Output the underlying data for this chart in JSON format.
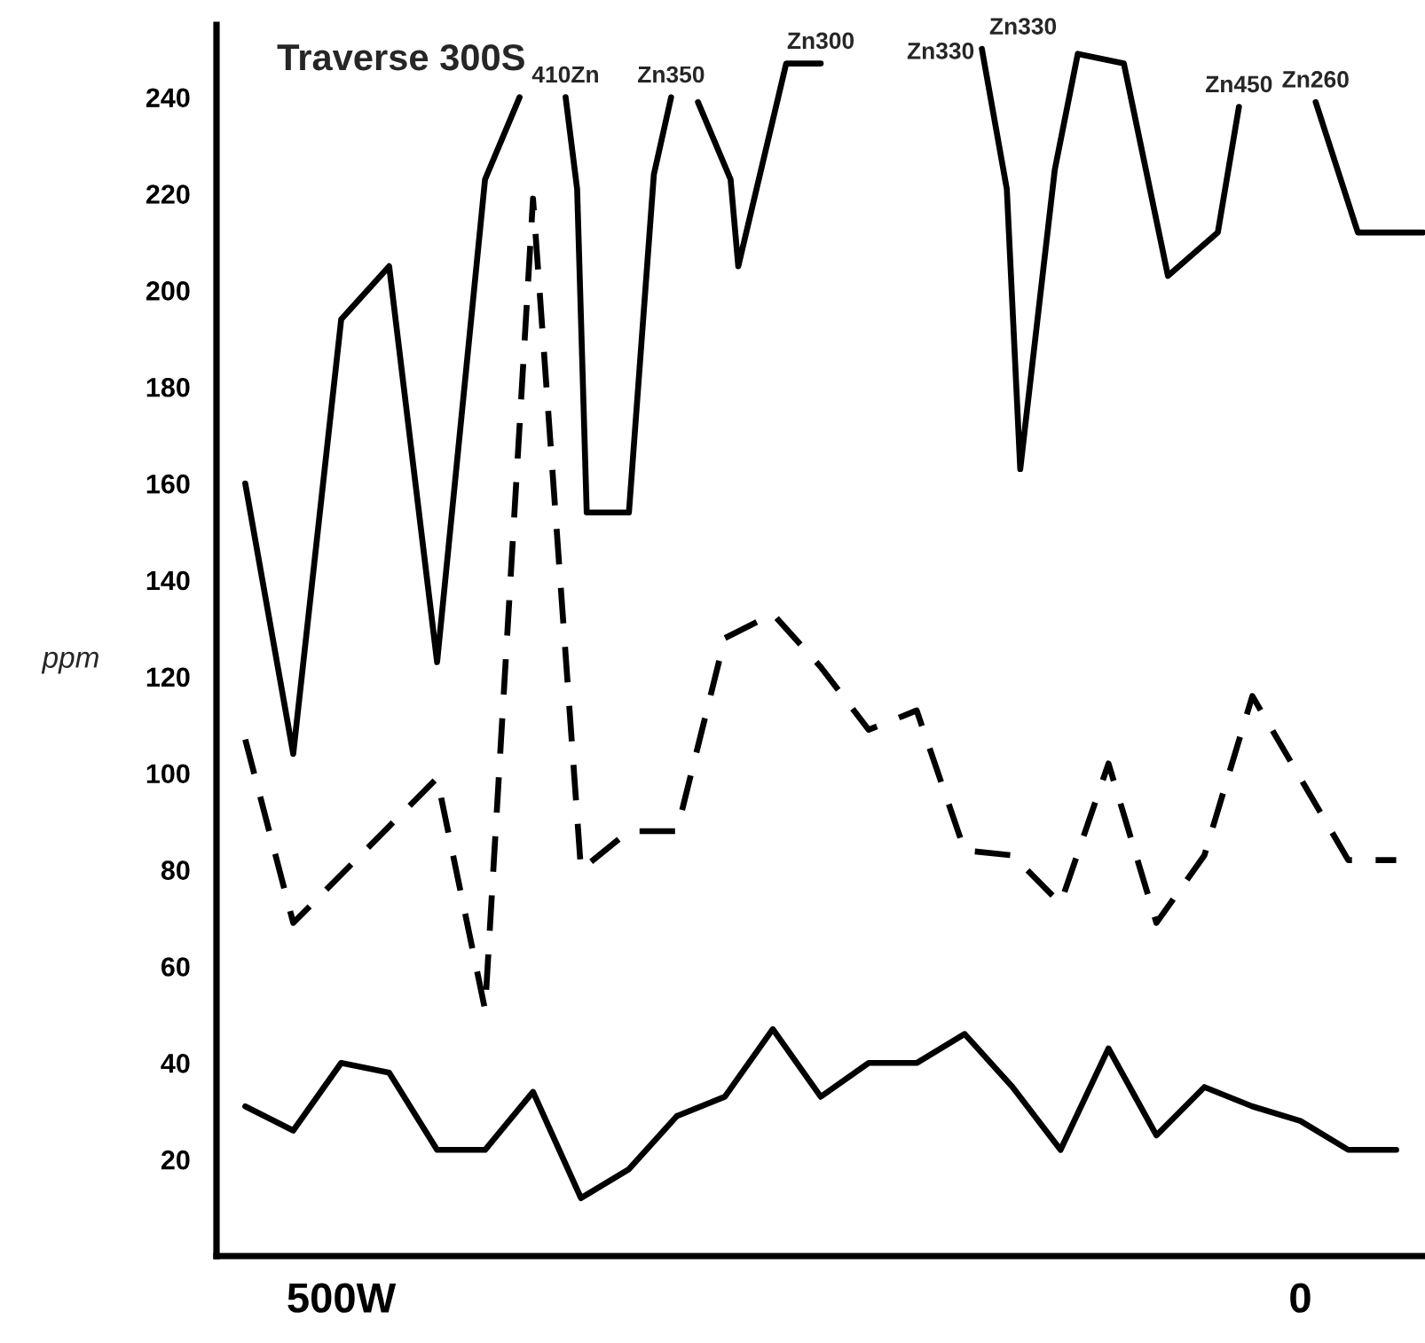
{
  "chart_data": {
    "type": "line",
    "title": "Traverse 300S",
    "ylabel": "ppm",
    "xlim": [
      -565,
      65
    ],
    "xticks": [
      {
        "value": -500,
        "label": "500W"
      },
      0
    ],
    "ylim": [
      0,
      255
    ],
    "yticks": [
      20,
      40,
      60,
      80,
      100,
      120,
      140,
      160,
      180,
      200,
      220,
      240
    ],
    "grid": false,
    "marker": "none",
    "series": [
      {
        "color": "#000000",
        "line_style": "solid",
        "x": [
          -550,
          -525,
          -500,
          -475,
          -450,
          -425,
          -407,
          -400,
          -383,
          -377,
          -372,
          -350,
          -337,
          -328,
          -325,
          -314,
          -297,
          -293,
          -268,
          -250,
          -225,
          -166,
          -153,
          -146,
          -128,
          -116,
          -92,
          -69,
          -43,
          -32,
          -10,
          8,
          30,
          64
        ],
        "values": [
          160,
          104,
          194,
          205,
          123,
          223,
          240,
          null,
          240,
          221,
          154,
          154,
          224,
          240,
          null,
          239,
          223,
          205,
          247,
          247,
          null,
          250,
          221,
          163,
          225,
          249,
          247,
          203,
          212,
          238,
          null,
          239,
          212,
          212
        ]
      },
      {
        "color": "#000000",
        "line_style": "dashed",
        "x": [
          -550,
          -525,
          -500,
          -475,
          -450,
          -425,
          -400,
          -375,
          -350,
          -325,
          -300,
          -275,
          -250,
          -225,
          -200,
          -175,
          -150,
          -125,
          -100,
          -75,
          -50,
          -25,
          0,
          25,
          50
        ],
        "values": [
          107,
          69,
          79,
          89,
          99,
          51,
          219,
          80,
          88,
          88,
          128,
          133,
          122,
          109,
          113,
          84,
          83,
          73,
          102,
          69,
          83,
          116,
          99,
          82,
          82
        ]
      },
      {
        "color": "#000000",
        "line_style": "solid",
        "x": [
          -550,
          -525,
          -500,
          -475,
          -450,
          -425,
          -400,
          -375,
          -350,
          -325,
          -300,
          -275,
          -250,
          -225,
          -200,
          -175,
          -150,
          -125,
          -100,
          -75,
          -50,
          -25,
          0,
          25,
          50
        ],
        "values": [
          31,
          26,
          40,
          38,
          22,
          22,
          34,
          12,
          18,
          29,
          33,
          47,
          33,
          40,
          40,
          46,
          35,
          22,
          43,
          25,
          35,
          31,
          28,
          22,
          22
        ]
      }
    ],
    "annotations": [
      {
        "text": "410Zn",
        "x": -383,
        "y": 240
      },
      {
        "text": "Zn350",
        "x": -328,
        "y": 240
      },
      {
        "text": "Zn300",
        "x": -250,
        "y": 247
      },
      {
        "text": "Zn330",
        "x": -166,
        "y": 250
      },
      {
        "text": "Zn330",
        "x": -166,
        "y": 250
      },
      {
        "text": "Zn450",
        "x": -32,
        "y": 238
      },
      {
        "text": "Zn260",
        "x": 8,
        "y": 239
      }
    ]
  }
}
